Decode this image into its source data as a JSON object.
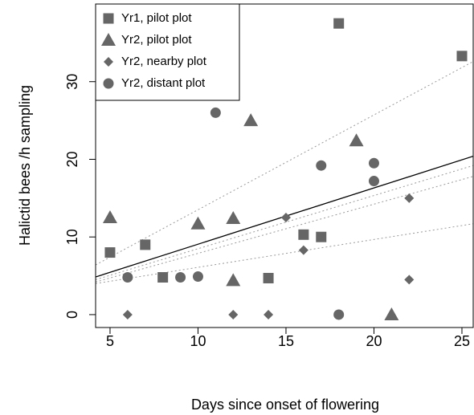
{
  "chart_data": {
    "type": "scatter",
    "xlabel": "Days since onset of flowering",
    "ylabel": "Halictid bees /h sampling",
    "xlim": [
      4.18,
      25.64
    ],
    "ylim": [
      -1.66,
      40.0
    ],
    "xticks": [
      5,
      10,
      15,
      20,
      25
    ],
    "yticks": [
      0,
      10,
      20,
      30
    ],
    "legend": "top-left",
    "series": [
      {
        "name": "Yr1, pilot plot",
        "color": "#666666",
        "marker": "square",
        "x": [
          5,
          7,
          8,
          14,
          16,
          17,
          18,
          25
        ],
        "values": [
          8,
          9,
          4.8,
          4.7,
          10.3,
          10,
          37.5,
          33.3
        ]
      },
      {
        "name": "Yr2, pilot plot",
        "color": "#666666",
        "marker": "triangle",
        "x": [
          5,
          10,
          12,
          12,
          13,
          19,
          21
        ],
        "values": [
          12.5,
          11.7,
          12.4,
          4.4,
          25,
          22.4,
          0
        ]
      },
      {
        "name": "Yr2, nearby plot",
        "color": "#666666",
        "marker": "diamond",
        "x": [
          6,
          12,
          14,
          15,
          16,
          22,
          22
        ],
        "values": [
          0,
          0,
          0,
          12.5,
          8.3,
          15,
          4.5
        ]
      },
      {
        "name": "Yr2, distant plot",
        "color": "#666666",
        "marker": "circle",
        "x": [
          6,
          9,
          10,
          11,
          17,
          18,
          20,
          20
        ],
        "values": [
          4.8,
          4.8,
          4.9,
          26,
          19.2,
          0,
          19.5,
          17.2
        ]
      }
    ],
    "lines": [
      {
        "x": [
          4.18,
          25.64
        ],
        "y": [
          4.85,
          20.4
        ],
        "color": "#000000",
        "style": "solid"
      },
      {
        "x": [
          4.18,
          25.64
        ],
        "y": [
          6.4,
          32.6
        ],
        "color": "#999999",
        "style": "dotted"
      },
      {
        "x": [
          4.18,
          25.64
        ],
        "y": [
          4.5,
          19.2
        ],
        "color": "#999999",
        "style": "dotted"
      },
      {
        "x": [
          4.18,
          25.64
        ],
        "y": [
          4.2,
          17.8
        ],
        "color": "#999999",
        "style": "dotted"
      },
      {
        "x": [
          4.18,
          25.64
        ],
        "y": [
          4.0,
          11.7
        ],
        "color": "#999999",
        "style": "dotted"
      }
    ]
  }
}
